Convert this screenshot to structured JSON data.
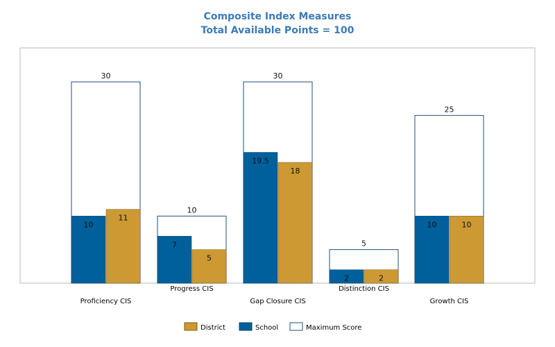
{
  "chart_data": {
    "type": "bar",
    "title": "Composite Index Measures",
    "subtitle": "Total Available Points = 100",
    "categories": [
      "Proficiency CIS",
      "Progress CIS",
      "Gap Closure CIS",
      "Distinction CIS",
      "Growth CIS"
    ],
    "series": [
      {
        "name": "Maximum Score",
        "values": [
          30,
          10,
          30,
          5,
          25
        ],
        "color": "#ffffff",
        "stroke": "#1f4e79"
      },
      {
        "name": "School",
        "values": [
          10,
          7,
          19.5,
          2,
          10
        ],
        "color": "#00609b"
      },
      {
        "name": "District",
        "values": [
          11,
          5,
          18,
          2,
          10
        ],
        "color": "#cc9933"
      }
    ],
    "legend": [
      "District",
      "School",
      "Maximum Score"
    ],
    "legend_position": "bottom",
    "ylim": [
      0,
      30
    ],
    "grid": false
  }
}
